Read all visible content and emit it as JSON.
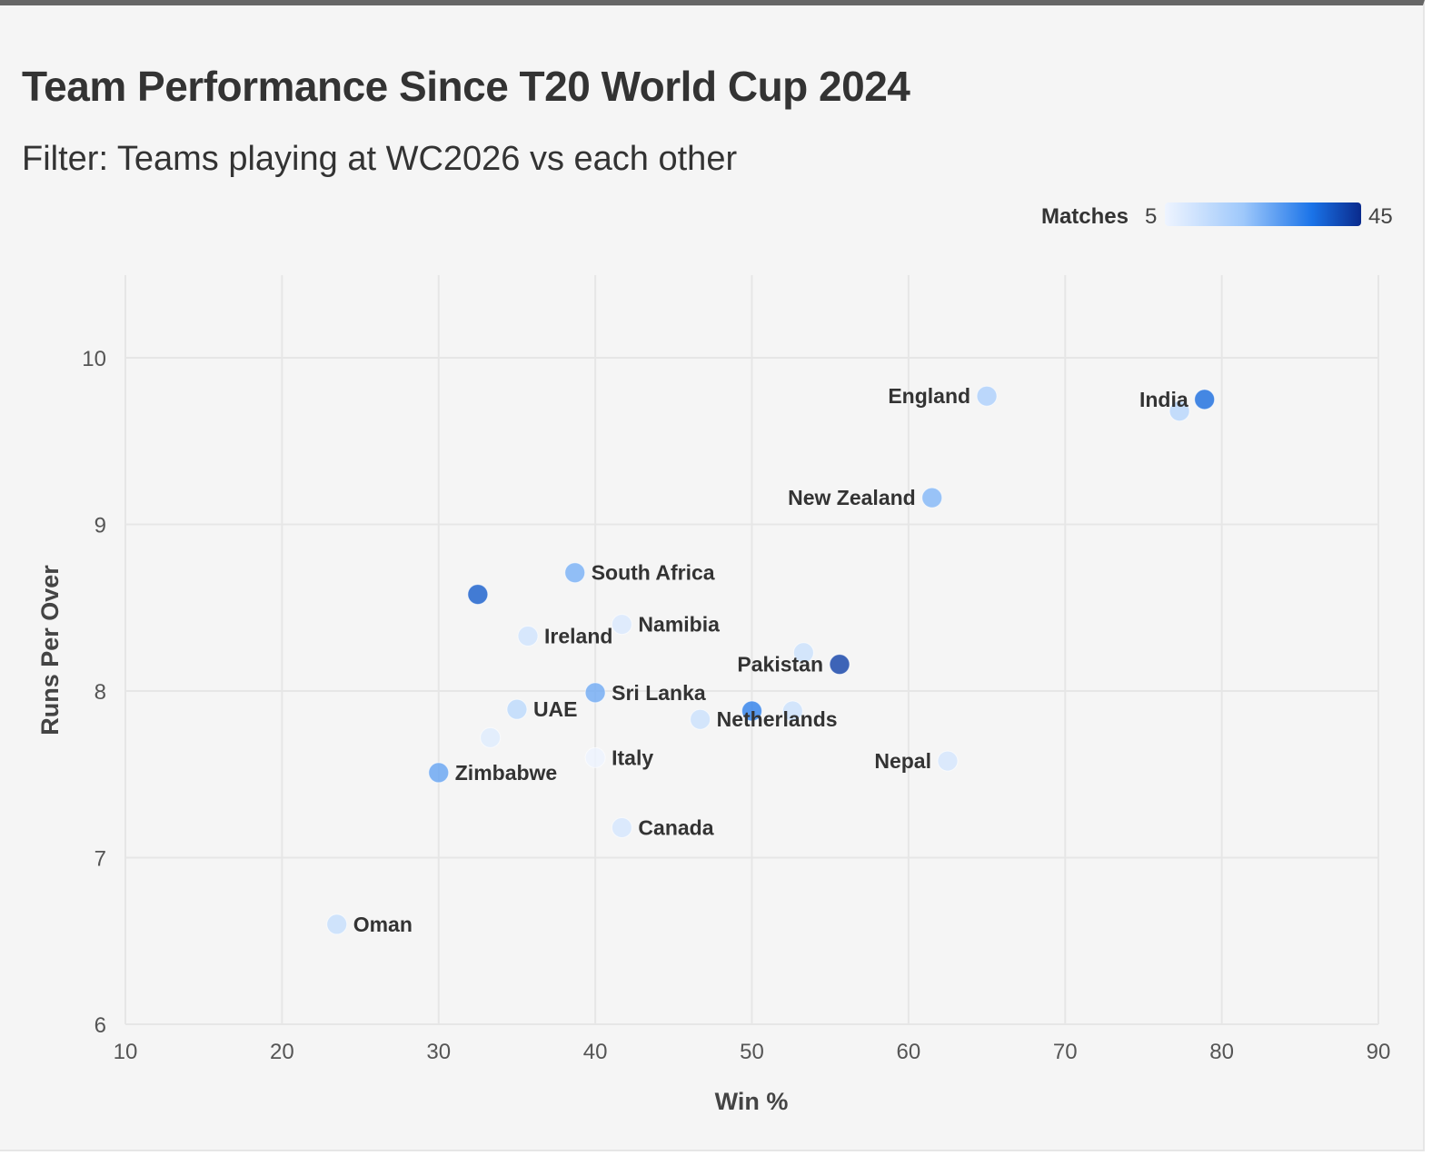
{
  "header": {
    "title": "Team Performance Since T20 World Cup 2024",
    "subtitle": "Filter: Teams playing at WC2026 vs each other"
  },
  "legend": {
    "title": "Matches",
    "min_label": "5",
    "max_label": "45",
    "colors": [
      "#eef4ff",
      "#9ec8fb",
      "#1a73e8",
      "#0a2a8c"
    ]
  },
  "chart_data": {
    "type": "scatter",
    "title": "Team Performance Since T20 World Cup 2024",
    "subtitle": "Filter: Teams playing at WC2026 vs each other",
    "xlabel": "Win %",
    "ylabel": "Runs Per Over",
    "xlim": [
      10,
      90
    ],
    "ylim": [
      6,
      10.5
    ],
    "xticks": [
      10,
      20,
      30,
      40,
      50,
      60,
      70,
      80,
      90
    ],
    "yticks": [
      6,
      7,
      8,
      9,
      10
    ],
    "grid": true,
    "color_encoding": "Matches",
    "color_range": [
      5,
      45
    ],
    "points": [
      {
        "label": "",
        "x": 77.3,
        "y": 9.68,
        "matches": 16
      },
      {
        "label": "India",
        "x": 78.9,
        "y": 9.75,
        "matches": 36
      },
      {
        "label": "England",
        "x": 65.0,
        "y": 9.77,
        "matches": 18
      },
      {
        "label": "New Zealand",
        "x": 61.5,
        "y": 9.16,
        "matches": 24
      },
      {
        "label": "South Africa",
        "x": 38.7,
        "y": 8.71,
        "matches": 25
      },
      {
        "label": "",
        "x": 32.5,
        "y": 8.58,
        "matches": 38
      },
      {
        "label": "Ireland",
        "x": 35.7,
        "y": 8.33,
        "matches": 11
      },
      {
        "label": "Namibia",
        "x": 41.7,
        "y": 8.4,
        "matches": 9
      },
      {
        "label": "",
        "x": 53.3,
        "y": 8.23,
        "matches": 12
      },
      {
        "label": "Pakistan",
        "x": 55.6,
        "y": 8.16,
        "matches": 42
      },
      {
        "label": "Sri Lanka",
        "x": 40.0,
        "y": 7.99,
        "matches": 26
      },
      {
        "label": "UAE",
        "x": 35.0,
        "y": 7.89,
        "matches": 15
      },
      {
        "label": "",
        "x": 50.0,
        "y": 7.88,
        "matches": 33
      },
      {
        "label": "",
        "x": 52.6,
        "y": 7.88,
        "matches": 12
      },
      {
        "label": "Netherlands",
        "x": 46.7,
        "y": 7.83,
        "matches": 12
      },
      {
        "label": "",
        "x": 33.3,
        "y": 7.72,
        "matches": 8
      },
      {
        "label": "Italy",
        "x": 40.0,
        "y": 7.6,
        "matches": 5
      },
      {
        "label": "Nepal",
        "x": 62.5,
        "y": 7.58,
        "matches": 10
      },
      {
        "label": "Zimbabwe",
        "x": 30.0,
        "y": 7.51,
        "matches": 27
      },
      {
        "label": "Canada",
        "x": 41.7,
        "y": 7.18,
        "matches": 10
      },
      {
        "label": "Oman",
        "x": 23.5,
        "y": 6.6,
        "matches": 13
      }
    ]
  }
}
